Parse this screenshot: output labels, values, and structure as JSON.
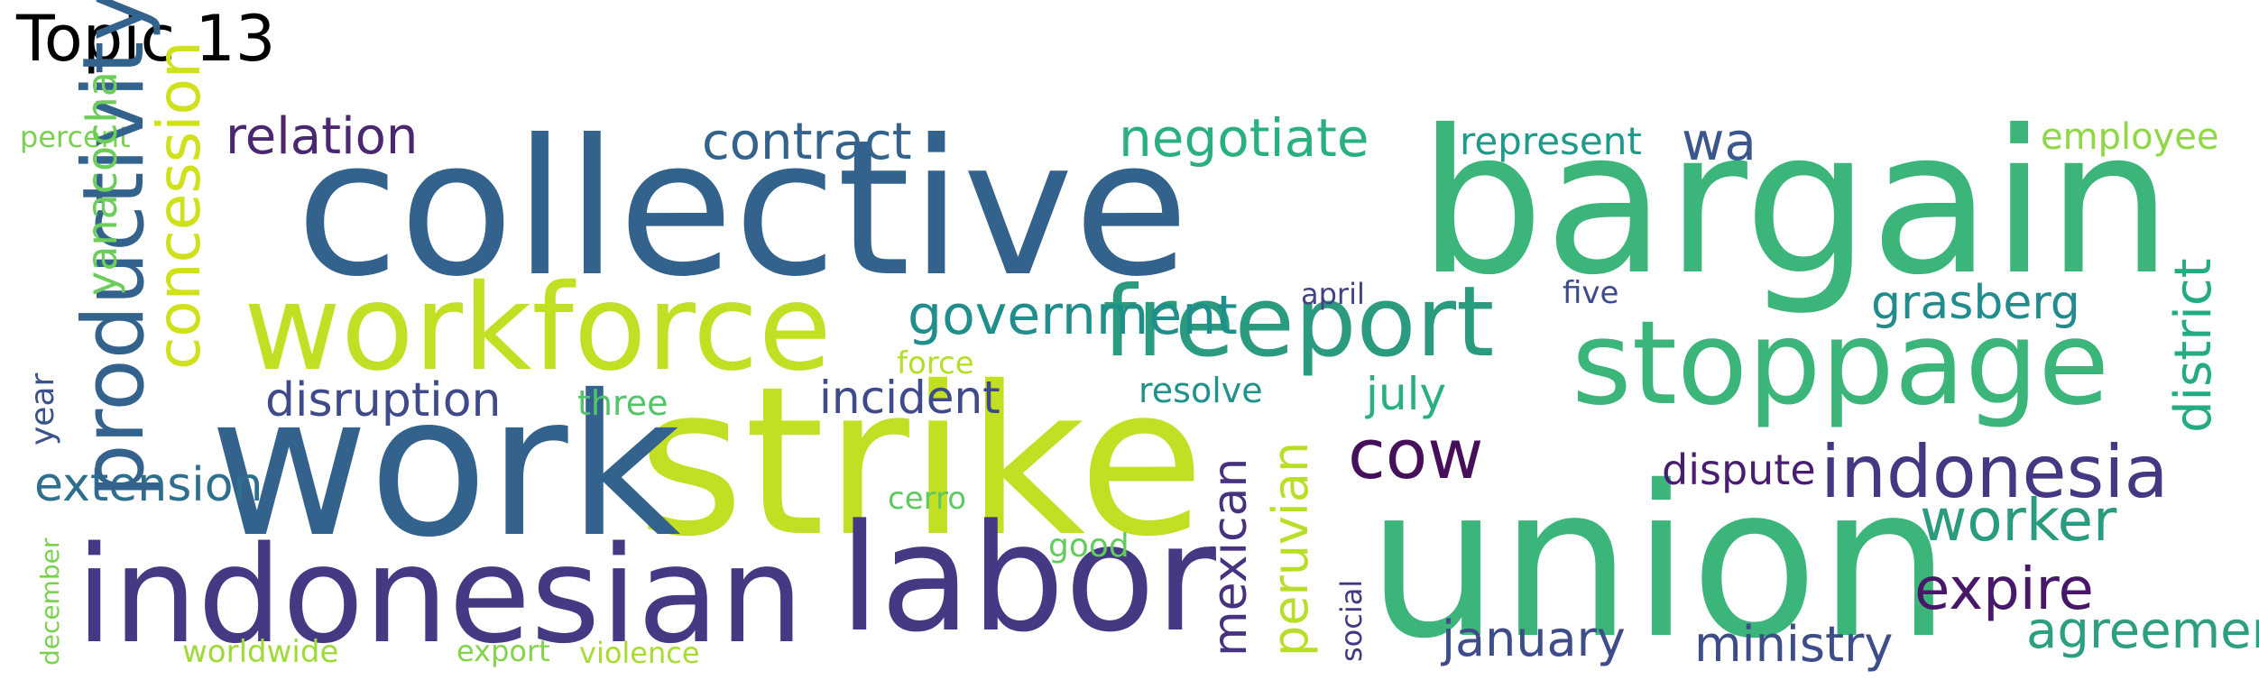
{
  "title": "Topic 13",
  "words": [
    {
      "text": "collective",
      "color": "#33638d"
    },
    {
      "text": "bargain",
      "color": "#3cb57a"
    },
    {
      "text": "strike",
      "color": "#c2df23"
    },
    {
      "text": "work",
      "color": "#33638d"
    },
    {
      "text": "union",
      "color": "#3cb57a"
    },
    {
      "text": "indonesian",
      "color": "#443a83"
    },
    {
      "text": "labor",
      "color": "#443a83"
    },
    {
      "text": "workforce",
      "color": "#c2df23"
    },
    {
      "text": "stoppage",
      "color": "#3cb57a"
    },
    {
      "text": "freeport",
      "color": "#2a9b7f"
    },
    {
      "text": "indonesia",
      "color": "#453781"
    },
    {
      "text": "cow",
      "color": "#450f5a"
    },
    {
      "text": "expire",
      "color": "#481769"
    },
    {
      "text": "worker",
      "color": "#2a9b7f"
    },
    {
      "text": "agreement",
      "color": "#2d9f81"
    },
    {
      "text": "ministry",
      "color": "#3d4d8a"
    },
    {
      "text": "january",
      "color": "#3e4c8a"
    },
    {
      "text": "relation",
      "color": "#4b2771"
    },
    {
      "text": "contract",
      "color": "#33638d"
    },
    {
      "text": "negotiate",
      "color": "#2ab07f"
    },
    {
      "text": "wa",
      "color": "#39578c"
    },
    {
      "text": "represent",
      "color": "#1f9a8a"
    },
    {
      "text": "employee",
      "color": "#8fd744"
    },
    {
      "text": "government",
      "color": "#208f8c"
    },
    {
      "text": "grasberg",
      "color": "#228c8d"
    },
    {
      "text": "disruption",
      "color": "#3e4a89"
    },
    {
      "text": "incident",
      "color": "#3e4a89"
    },
    {
      "text": "july",
      "color": "#2ab07f"
    },
    {
      "text": "resolve",
      "color": "#21918c"
    },
    {
      "text": "dispute",
      "color": "#481f70"
    },
    {
      "text": "extension",
      "color": "#2e6f8e"
    },
    {
      "text": "three",
      "color": "#52c569"
    },
    {
      "text": "force",
      "color": "#b5de2b"
    },
    {
      "text": "april",
      "color": "#404387"
    },
    {
      "text": "five",
      "color": "#3e4a89"
    },
    {
      "text": "cerro",
      "color": "#5ec962"
    },
    {
      "text": "good",
      "color": "#65cb5e"
    },
    {
      "text": "percent",
      "color": "#7ad151"
    },
    {
      "text": "worldwide",
      "color": "#a0da39"
    },
    {
      "text": "export",
      "color": "#84d44b"
    },
    {
      "text": "violence",
      "color": "#a8db34"
    },
    {
      "text": "productivity",
      "color": "#33638d"
    },
    {
      "text": "concession",
      "color": "#d0e11c"
    },
    {
      "text": "yanacocha",
      "color": "#6ccd5a"
    },
    {
      "text": "year",
      "color": "#3b528b"
    },
    {
      "text": "december",
      "color": "#7ad151"
    },
    {
      "text": "peruvian",
      "color": "#b8de29"
    },
    {
      "text": "mexican",
      "color": "#46327e"
    },
    {
      "text": "social",
      "color": "#453882"
    },
    {
      "text": "district",
      "color": "#25ab82"
    }
  ]
}
